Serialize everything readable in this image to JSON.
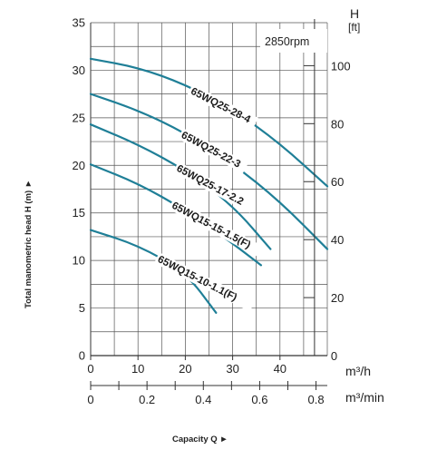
{
  "chart_data": {
    "type": "line",
    "speed_label": "2850rpm",
    "ylabel": "Total manometric head H (m) ►",
    "xlabel": "Capacity Q ►",
    "y_right_label": [
      "H",
      "[ft]"
    ],
    "x_unit_top": "m³/h",
    "x_unit_bottom": "m³/min",
    "ylim": [
      0,
      35
    ],
    "xlim_m3h": [
      0,
      50
    ],
    "xlim_m3min": [
      0,
      0.84
    ],
    "y_ticks": [
      "0",
      "5",
      "10",
      "15",
      "20",
      "25",
      "30",
      "35"
    ],
    "y_ticks_ft": [
      "0",
      "20",
      "40",
      "60",
      "80",
      "100"
    ],
    "x_ticks_m3h": [
      "0",
      "10",
      "20",
      "30",
      "40"
    ],
    "x_ticks_m3min": [
      "0",
      "0.2",
      "0.4",
      "0.6",
      "0.8"
    ],
    "grid": true,
    "curve_color": "#1f7f97",
    "series": [
      {
        "name": "65WQ25-28-4",
        "x": [
          0,
          10,
          20,
          30,
          40,
          50
        ],
        "y": [
          31.2,
          30.3,
          28.5,
          25.9,
          22.3,
          17.8
        ]
      },
      {
        "name": "65WQ25-22-3",
        "x": [
          0,
          10,
          20,
          30,
          40,
          50
        ],
        "y": [
          27.5,
          25.8,
          23.4,
          20.2,
          16.2,
          11.2
        ]
      },
      {
        "name": "65WQ25-17-2.2",
        "x": [
          0,
          10,
          20,
          30,
          38
        ],
        "y": [
          24.3,
          22.2,
          19.5,
          15.8,
          11.2
        ]
      },
      {
        "name": "65WQ15-15-1.5(F)",
        "x": [
          0,
          10,
          20,
          30,
          36
        ],
        "y": [
          20.1,
          18.1,
          15.3,
          11.8,
          9.5
        ]
      },
      {
        "name": "65WQ15-10-1.1(F)",
        "x": [
          0,
          10,
          20,
          26.5
        ],
        "y": [
          13.2,
          11.6,
          8.8,
          4.5
        ]
      }
    ]
  }
}
